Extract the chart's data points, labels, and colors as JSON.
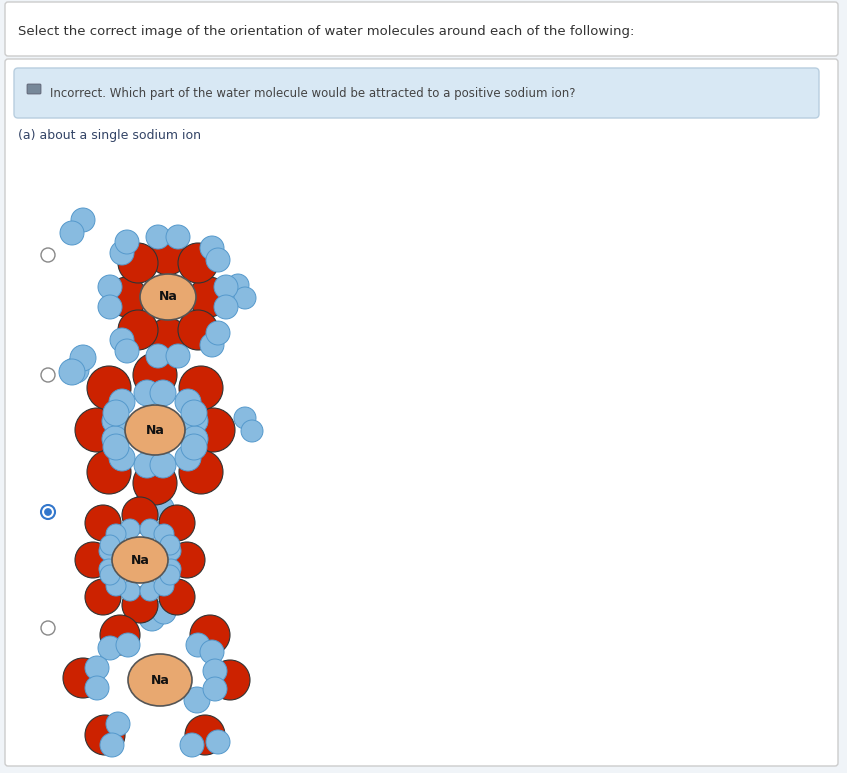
{
  "title_text": "Select the correct image of the orientation of water molecules around each of the following:",
  "feedback_text": "Incorrect. Which part of the water molecule would be attracted to a positive sodium ion?",
  "subtitle_text": "(a) about a single sodium ion",
  "na_color": "#E8A870",
  "na_border": "#555555",
  "red_color": "#CC2200",
  "red_border": "#333333",
  "blue_color": "#88BBE0",
  "blue_border": "#5599CC",
  "feedback_bg": "#D8E8F4",
  "feedback_border": "#B8CEDF",
  "radio_selected": 2,
  "bg_color": "#F0F4F8",
  "content_bg": "#FFFFFF"
}
